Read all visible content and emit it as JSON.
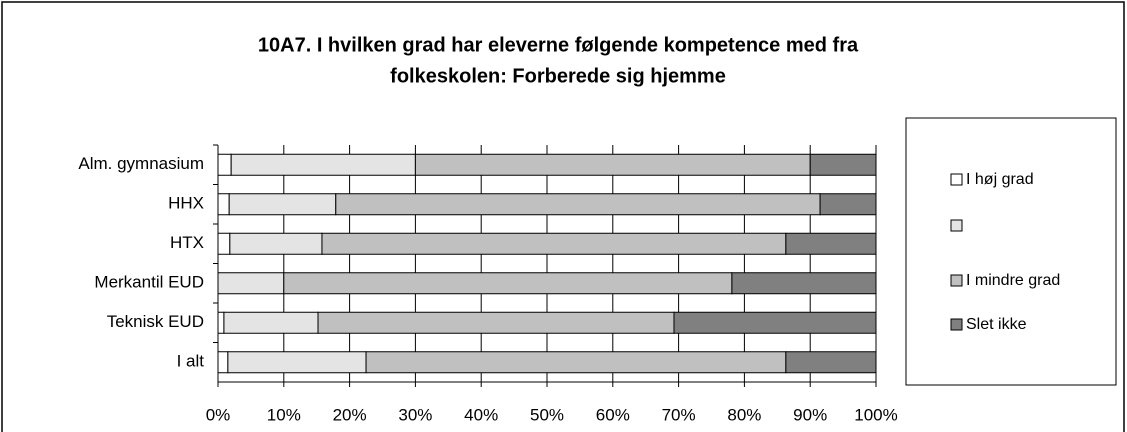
{
  "chart_data": {
    "type": "stacked_bar_horizontal",
    "title": "10A7. I hvilken grad har eleverne følgende kompetence med fra",
    "subtitle": "folkeskolen: Forberede sig hjemme",
    "categories": [
      "Alm. gymnasium",
      "HHX",
      "HTX",
      "Merkantil EUD",
      "Teknisk EUD",
      "I alt"
    ],
    "series": [
      {
        "name": "I høj grad",
        "color": "#ffffff",
        "values": [
          2,
          1.7,
          1.8,
          0,
          0.9,
          1.5
        ]
      },
      {
        "name": null,
        "color": "#e4e4e4",
        "values": [
          28,
          16.2,
          14,
          10,
          14.3,
          21
        ]
      },
      {
        "name": "I mindre grad",
        "color": "#c0c0c0",
        "values": [
          60,
          73.6,
          70.5,
          68.1,
          54.1,
          63.8
        ]
      },
      {
        "name": "Slet ikke",
        "color": "#808080",
        "values": [
          10,
          8.5,
          13.7,
          21.9,
          30.7,
          13.7
        ]
      }
    ],
    "xlim": [
      0,
      100
    ],
    "xticks": [
      {
        "value": 0,
        "label": "0%"
      },
      {
        "value": 10,
        "label": "10%"
      },
      {
        "value": 20,
        "label": "20%"
      },
      {
        "value": 30,
        "label": "30%"
      },
      {
        "value": 40,
        "label": "40%"
      },
      {
        "value": 50,
        "label": "50%"
      },
      {
        "value": 60,
        "label": "60%"
      },
      {
        "value": 70,
        "label": "70%"
      },
      {
        "value": 80,
        "label": "80%"
      },
      {
        "value": 90,
        "label": "90%"
      },
      {
        "value": 100,
        "label": "100%"
      }
    ],
    "grid": true,
    "legend": "right"
  }
}
